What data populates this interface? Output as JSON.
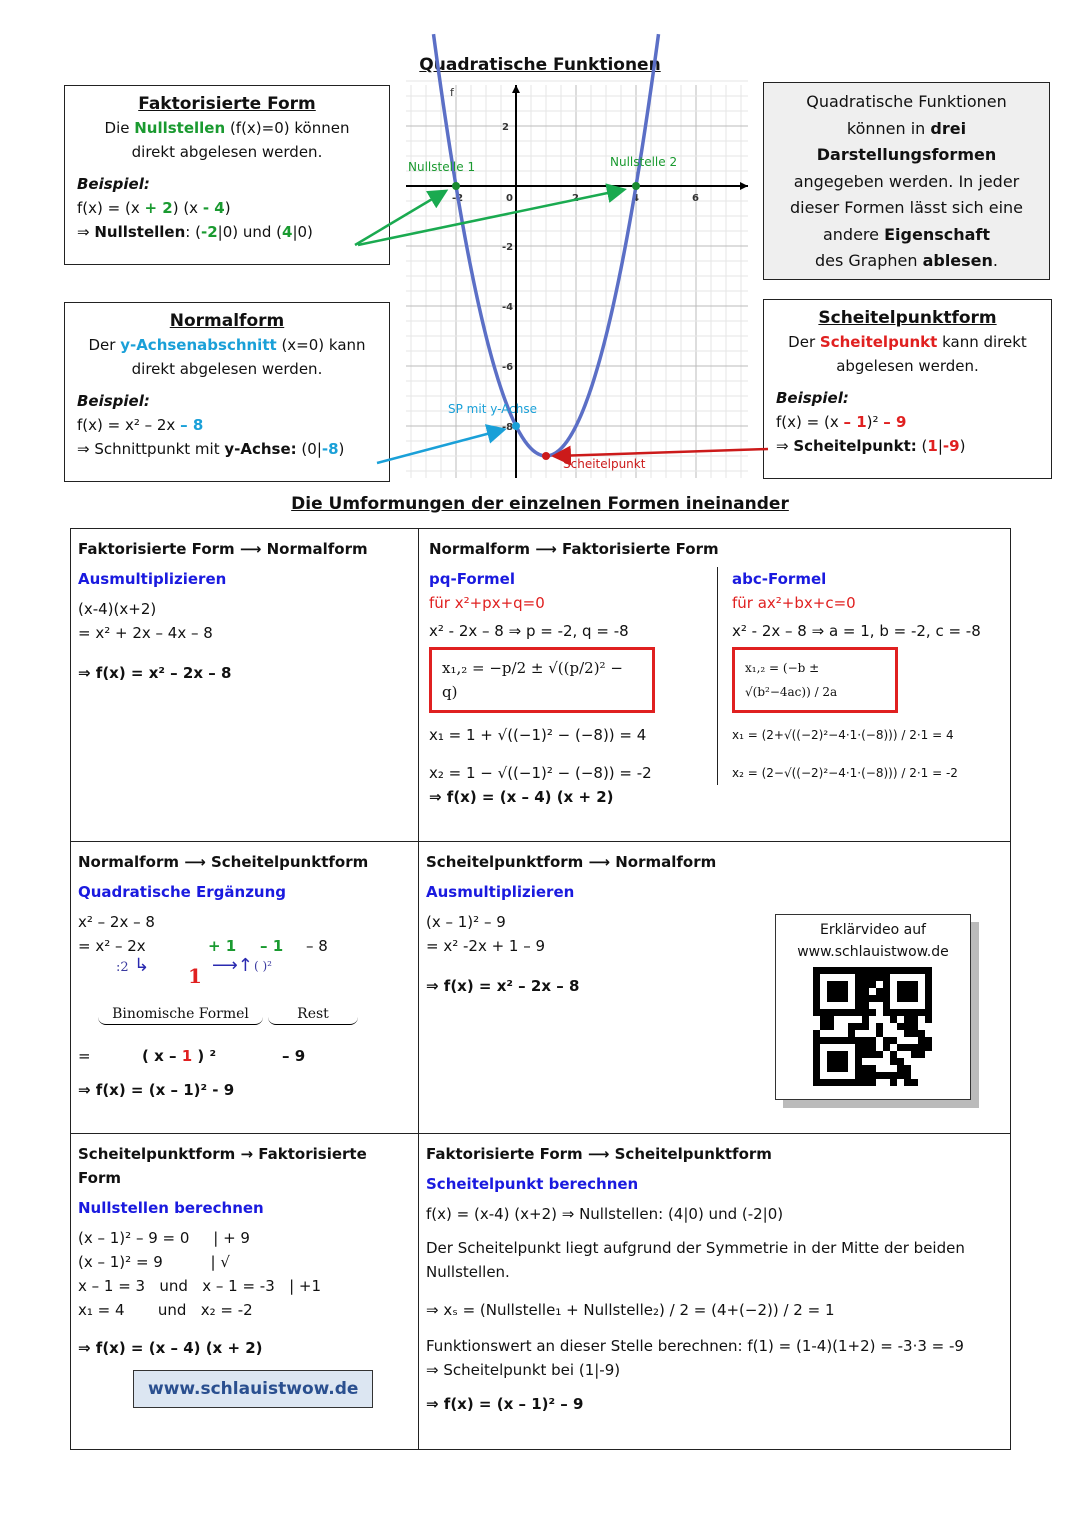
{
  "title": "Quadratische Funktionen",
  "faktor": {
    "heading": "Faktorisierte Form",
    "l1a": "Die ",
    "l1b": "Nullstellen",
    "l1c": " (f(x)=0) können",
    "l2": "direkt abgelesen werden.",
    "beispiel": "Beispiel:",
    "f1": "f(x) = (x ",
    "f2": "+ 2",
    "f3": ") (x ",
    "f4": "- 4",
    "f5": ")",
    "n1": "⇒ ",
    "n2": "Nullstellen",
    "n3": ": (",
    "n4": "-2",
    "n5": "|0) und (",
    "n6": "4",
    "n7": "|0)"
  },
  "normal": {
    "heading": "Normalform",
    "l1a": "Der ",
    "l1b": "y-Achsenabschnitt",
    "l1c": " (x=0) kann",
    "l2": "direkt abgelesen werden.",
    "beispiel": "Beispiel:",
    "f1": "f(x) = x² – 2x ",
    "f2": "– 8",
    "s1": "⇒ Schnittpunkt mit ",
    "s2": "y-Achse:",
    "s3": " (0|",
    "s4": "-8",
    "s5": ")"
  },
  "info": {
    "l1": "Quadratische Funktionen",
    "l2a": "können in ",
    "l2b": "drei",
    "l3": "Darstellungsformen",
    "l4": "angegeben werden. In jeder",
    "l5": "dieser Formen lässt sich eine",
    "l6a": "andere ",
    "l6b": "Eigenschaft",
    "l7a": "des Graphen ",
    "l7b": "ablesen",
    "l7c": "."
  },
  "scheitel": {
    "heading": "Scheitelpunktform",
    "l1a": "Der ",
    "l1b": "Scheitelpunkt",
    "l1c": "  kann direkt",
    "l2": "abgelesen werden.",
    "beispiel": "Beispiel:",
    "f1": "f(x) = (x ",
    "f2": "– 1",
    "f3": ")² ",
    "f4": "– 9",
    "s1": "⇒ ",
    "s2": "Scheitelpunkt:",
    "s3": " (",
    "s4": "1",
    "s5": "|",
    "s6": "-9",
    "s7": ")"
  },
  "graph": {
    "function_label": "f",
    "labels": {
      "n1": "Nullstelle 1",
      "n2": "Nullstelle 2",
      "sp": "SP mit y-Achse",
      "sc": "Scheitelpunkt"
    },
    "x_ticks": [
      "-2",
      "0",
      "2",
      "4",
      "6"
    ],
    "y_ticks": [
      "2",
      "-2",
      "-4",
      "-6",
      "-8"
    ],
    "colors": {
      "curve": "#5b6fc6",
      "green": "#1a9a30",
      "blue": "#1aa0d8",
      "red": "#cc1a1a"
    }
  },
  "section_title": "Die Umformungen der einzelnen Formen ineinander",
  "cells": {
    "c1": {
      "h1": "Faktorisierte Form ",
      "arrow": "⟶",
      "h2": " Normalform",
      "sub": "Ausmultiplizieren",
      "l1": "(x-4)(x+2)",
      "l2": "= x² + 2x – 4x  – 8",
      "res": "⇒ f(x) = x² – 2x – 8"
    },
    "c2": {
      "h1": "Normalform ",
      "arrow": "⟶",
      "h2": " Faktorisierte Form",
      "pq": "pq-Formel",
      "pqfor": "für x²+px+q=0",
      "pqex": "x² - 2x – 8 ⇒ p = -2, q = -8",
      "pqf": "x₁,₂ = −p/2 ± √((p/2)² − q)",
      "x1": "x₁ = 1 + √((−1)² − (−8))  = 4",
      "x2": "x₂ = 1 − √((−1)² − (−8))  = -2",
      "abc": "abc-Formel",
      "abcfor": "für ax²+bx+c=0",
      "abcex": "x² - 2x – 8 ⇒ a = 1, b = -2, c = -8",
      "abcf": "x₁,₂ = (−b ± √(b²−4ac)) / 2a",
      "ax1": "x₁ = (2+√((−2)²−4·1·(−8))) / 2·1 = 4",
      "ax2": "x₂ = (2−√((−2)²−4·1·(−8))) / 2·1 = -2",
      "res": "⇒ f(x) = (x – 4) (x + 2)"
    },
    "c3": {
      "h1": "Normalform ",
      "arrow": "⟶",
      "h2": " Scheitelpunktform",
      "sub": "Quadratische Ergänzung",
      "l1": "x² – 2x – 8",
      "l2": "= x² – 2x",
      "p1": "+ 1",
      "m1": "– 1",
      "m8": "– 8",
      "div": ":2",
      "one": "1",
      "sq": "( )²",
      "binom": "Binomische Formel",
      "rest": "Rest",
      "eq": "=",
      "b1": "( x – ",
      "b2": "1",
      "b3": " ) ²",
      "b4": "– 9",
      "res": "⇒ f(x) = (x – 1)² - 9"
    },
    "c4": {
      "h1": "Scheitelpunktform ",
      "arrow": "⟶",
      "h2": " Normalform",
      "sub": "Ausmultiplizieren",
      "l1": "(x – 1)² – 9",
      "l2": "= x² -2x + 1 – 9",
      "res": "⇒ f(x) = x² – 2x – 8",
      "video1": "Erklärvideo auf",
      "video2": "www.schlauistwow.de"
    },
    "c5": {
      "h1": "Scheitelpunktform ",
      "arrow": "→",
      "h2": " Faktorisierte Form",
      "sub": "Nullstellen berechnen",
      "l1": "(x – 1)² – 9 = 0     | + 9",
      "l2": "(x – 1)² = 9          | √",
      "l3": "x – 1 = 3   und   x – 1 = -3   | +1",
      "l4": "x₁ = 4       und   x₂ = -2",
      "res": "⇒ f(x) = (x – 4) (x + 2)",
      "web": "www.schlauistwow.de"
    },
    "c6": {
      "h1": "Faktorisierte Form ",
      "arrow": "⟶",
      "h2": " Scheitelpunktform",
      "sub": "Scheitelpunkt berechnen",
      "l1": "f(x) = (x-4) (x+2)  ⇒ Nullstellen: (4|0) und (-2|0)",
      "l2": "Der Scheitelpunkt liegt aufgrund der Symmetrie in der Mitte der beiden Nullstellen.",
      "l3": "⇒ xₛ = (Nullstelle₁ + Nullstelle₂) / 2 = (4+(−2)) / 2 = 1",
      "l4": "Funktionswert an dieser Stelle berechnen:  f(1) = (1-4)(1+2) = -3·3 = -9",
      "l5": "⇒ Scheitelpunkt bei (1|-9)",
      "res": "⇒ f(x) = (x – 1)² – 9"
    }
  }
}
